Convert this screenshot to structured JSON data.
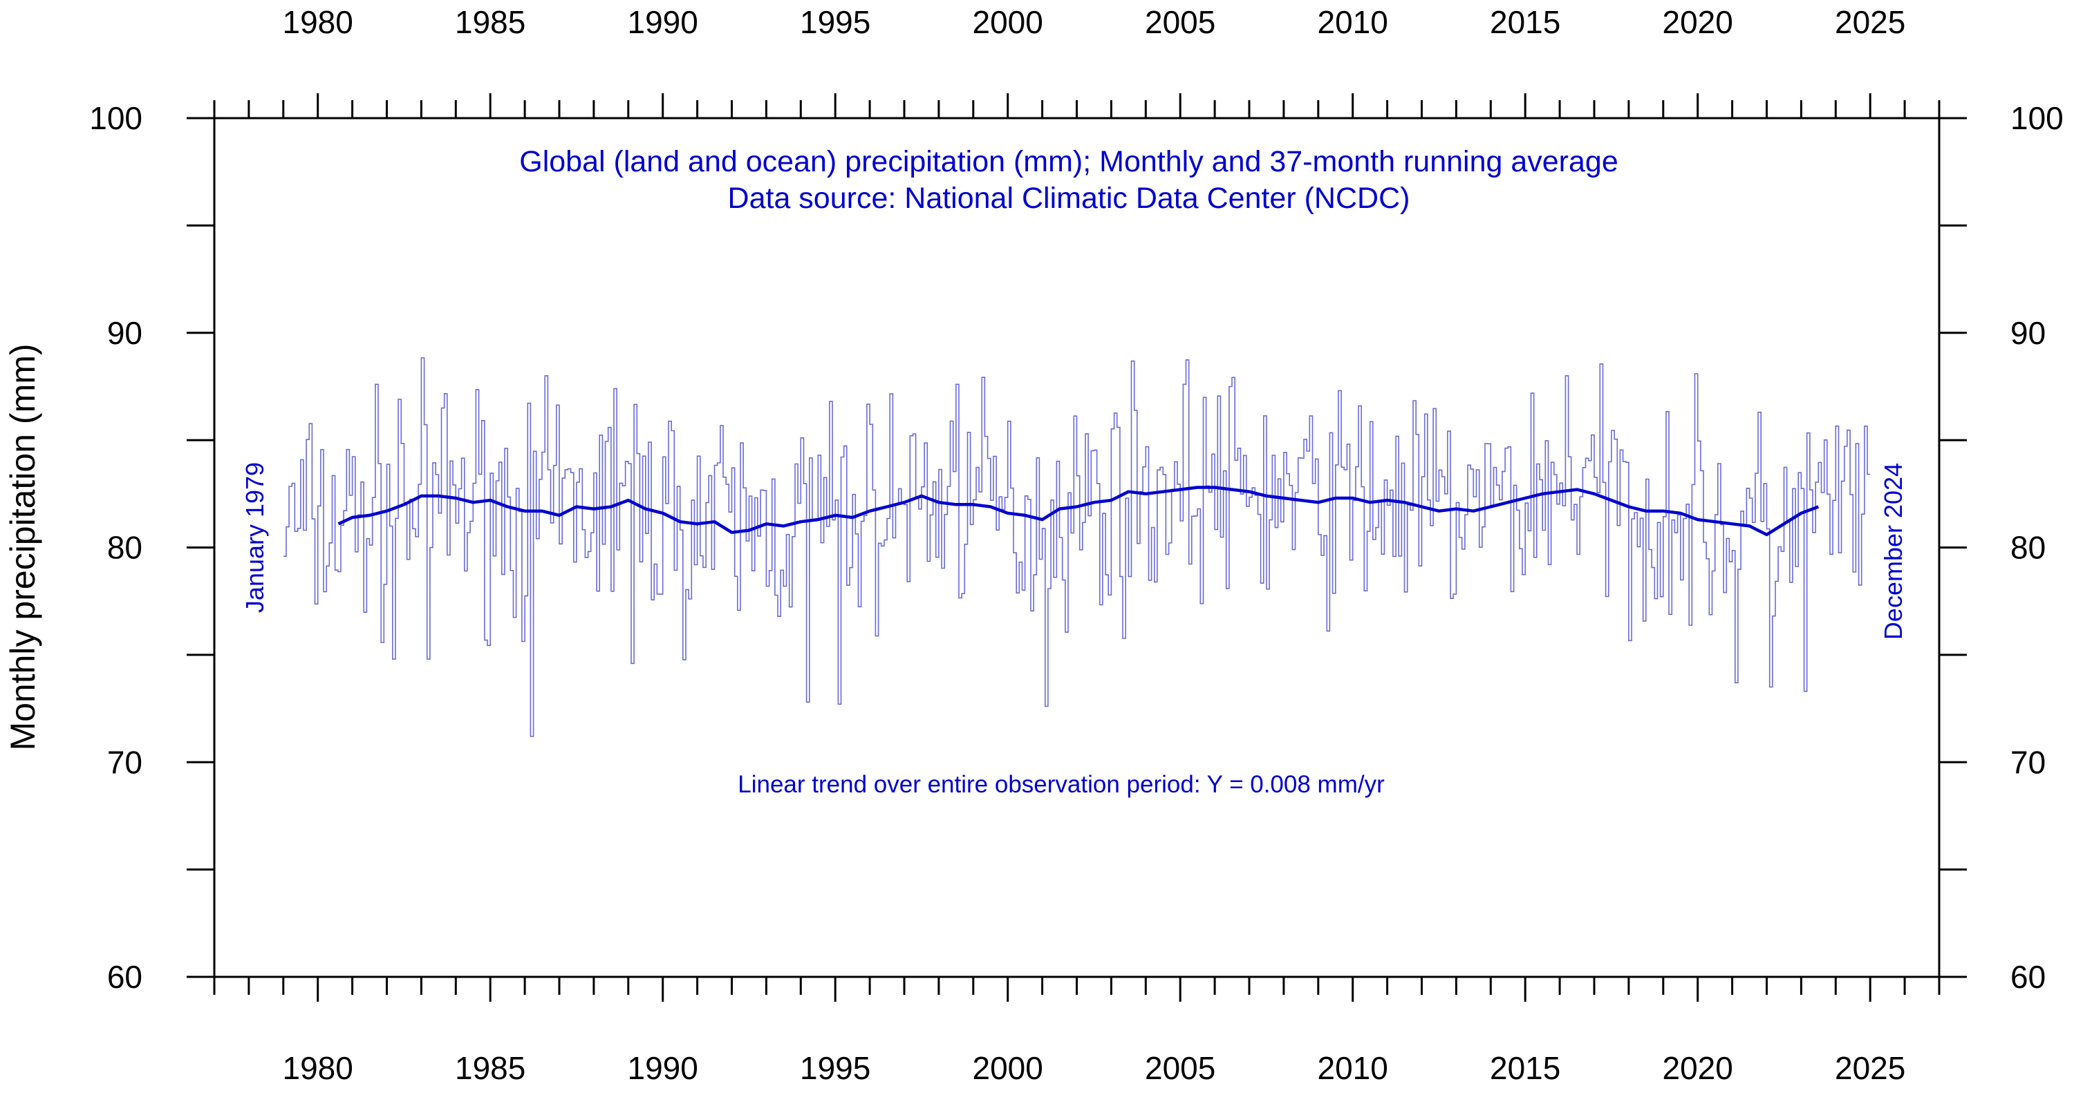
{
  "chart_data": {
    "type": "line",
    "title": "Global (land and ocean) precipitation (mm); Monthly and 37-month running average",
    "subtitle": "Data source: National Climatic Data Center (NCDC)",
    "ylabel": "Monthly precipitation (mm)",
    "xlabel": "",
    "xlim": [
      1977,
      2027
    ],
    "ylim": [
      60,
      100
    ],
    "x_ticks": [
      1980,
      1985,
      1990,
      1995,
      2000,
      2005,
      2010,
      2015,
      2020,
      2025
    ],
    "y_ticks": [
      60,
      70,
      80,
      90,
      100
    ],
    "start_label": "January 1979",
    "end_label": "December 2024",
    "trend_annotation": "Linear trend over entire observation period: Y = 0.008 mm/yr",
    "colors": {
      "series": "#0000d0",
      "monthly": "#6a6ad8",
      "axis": "#000000"
    },
    "series": [
      {
        "name": "Monthly",
        "style": "step",
        "start_year": 1979,
        "end_year": 2025,
        "seed": 7,
        "baseline": 81.9,
        "spread": 2.6,
        "extremes": [
          {
            "x": 1982.3,
            "y": 86.9
          },
          {
            "x": 1982.2,
            "y": 74.8
          },
          {
            "x": 1983.2,
            "y": 74.8
          },
          {
            "x": 1986.2,
            "y": 71.2
          },
          {
            "x": 1988.6,
            "y": 87.4
          },
          {
            "x": 1989.1,
            "y": 74.6
          },
          {
            "x": 1994.2,
            "y": 72.8
          },
          {
            "x": 1995.1,
            "y": 72.7
          },
          {
            "x": 1998.5,
            "y": 87.6
          },
          {
            "x": 2001.1,
            "y": 72.6
          },
          {
            "x": 2005.1,
            "y": 87.6
          },
          {
            "x": 2010.2,
            "y": 86.6
          },
          {
            "x": 2016.2,
            "y": 88.0
          },
          {
            "x": 2021.1,
            "y": 73.7
          },
          {
            "x": 2022.1,
            "y": 73.5
          },
          {
            "x": 2023.1,
            "y": 73.3
          }
        ]
      },
      {
        "name": "37-month running average",
        "style": "line",
        "points": [
          [
            1980.6,
            81.1
          ],
          [
            1981.0,
            81.4
          ],
          [
            1981.5,
            81.5
          ],
          [
            1982.0,
            81.7
          ],
          [
            1982.5,
            82.0
          ],
          [
            1983.0,
            82.4
          ],
          [
            1983.5,
            82.4
          ],
          [
            1984.0,
            82.3
          ],
          [
            1984.5,
            82.1
          ],
          [
            1985.0,
            82.2
          ],
          [
            1985.5,
            81.9
          ],
          [
            1986.0,
            81.7
          ],
          [
            1986.5,
            81.7
          ],
          [
            1987.0,
            81.5
          ],
          [
            1987.5,
            81.9
          ],
          [
            1988.0,
            81.8
          ],
          [
            1988.5,
            81.9
          ],
          [
            1989.0,
            82.2
          ],
          [
            1989.5,
            81.8
          ],
          [
            1990.0,
            81.6
          ],
          [
            1990.5,
            81.2
          ],
          [
            1991.0,
            81.1
          ],
          [
            1991.5,
            81.2
          ],
          [
            1992.0,
            80.7
          ],
          [
            1992.5,
            80.8
          ],
          [
            1993.0,
            81.1
          ],
          [
            1993.5,
            81.0
          ],
          [
            1994.0,
            81.2
          ],
          [
            1994.5,
            81.3
          ],
          [
            1995.0,
            81.5
          ],
          [
            1995.5,
            81.4
          ],
          [
            1996.0,
            81.7
          ],
          [
            1996.5,
            81.9
          ],
          [
            1997.0,
            82.1
          ],
          [
            1997.5,
            82.4
          ],
          [
            1998.0,
            82.1
          ],
          [
            1998.5,
            82.0
          ],
          [
            1999.0,
            82.0
          ],
          [
            1999.5,
            81.9
          ],
          [
            2000.0,
            81.6
          ],
          [
            2000.5,
            81.5
          ],
          [
            2001.0,
            81.3
          ],
          [
            2001.5,
            81.8
          ],
          [
            2002.0,
            81.9
          ],
          [
            2002.5,
            82.1
          ],
          [
            2003.0,
            82.2
          ],
          [
            2003.5,
            82.6
          ],
          [
            2004.0,
            82.5
          ],
          [
            2004.5,
            82.6
          ],
          [
            2005.0,
            82.7
          ],
          [
            2005.5,
            82.8
          ],
          [
            2006.0,
            82.8
          ],
          [
            2006.5,
            82.7
          ],
          [
            2007.0,
            82.6
          ],
          [
            2007.5,
            82.4
          ],
          [
            2008.0,
            82.3
          ],
          [
            2008.5,
            82.2
          ],
          [
            2009.0,
            82.1
          ],
          [
            2009.5,
            82.3
          ],
          [
            2010.0,
            82.3
          ],
          [
            2010.5,
            82.1
          ],
          [
            2011.0,
            82.2
          ],
          [
            2011.5,
            82.1
          ],
          [
            2012.0,
            81.9
          ],
          [
            2012.5,
            81.7
          ],
          [
            2013.0,
            81.8
          ],
          [
            2013.5,
            81.7
          ],
          [
            2014.0,
            81.9
          ],
          [
            2014.5,
            82.1
          ],
          [
            2015.0,
            82.3
          ],
          [
            2015.5,
            82.5
          ],
          [
            2016.0,
            82.6
          ],
          [
            2016.5,
            82.7
          ],
          [
            2017.0,
            82.5
          ],
          [
            2017.5,
            82.2
          ],
          [
            2018.0,
            81.9
          ],
          [
            2018.5,
            81.7
          ],
          [
            2019.0,
            81.7
          ],
          [
            2019.5,
            81.6
          ],
          [
            2020.0,
            81.3
          ],
          [
            2020.5,
            81.2
          ],
          [
            2021.0,
            81.1
          ],
          [
            2021.5,
            81.0
          ],
          [
            2022.0,
            80.6
          ],
          [
            2022.5,
            81.1
          ],
          [
            2023.0,
            81.6
          ],
          [
            2023.5,
            81.9
          ]
        ]
      }
    ]
  }
}
